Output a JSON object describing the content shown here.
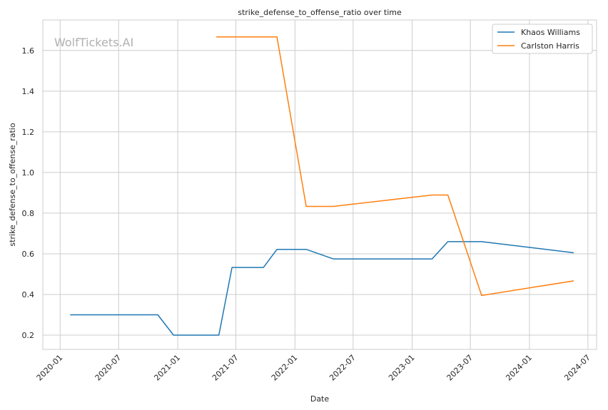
{
  "chart_data": {
    "type": "line",
    "title": "strike_defense_to_offense_ratio over time",
    "xlabel": "Date",
    "ylabel": "strike_defense_to_offense_ratio",
    "watermark": "WolfTickets.AI",
    "x_ticks": [
      "2020-01",
      "2020-07",
      "2021-01",
      "2021-07",
      "2022-01",
      "2022-07",
      "2023-01",
      "2023-07",
      "2024-01",
      "2024-07"
    ],
    "y_ticks": [
      "0.2",
      "0.4",
      "0.6",
      "0.8",
      "1.0",
      "1.2",
      "1.4",
      "1.6"
    ],
    "xlim": [
      "2019-11-08",
      "2024-07-28"
    ],
    "ylim": [
      0.13,
      1.75
    ],
    "grid": true,
    "legend_position": "top-right",
    "series": [
      {
        "name": "Khaos Williams",
        "color": "#1f77b4",
        "points": [
          [
            "2020-02-01",
            0.3
          ],
          [
            "2020-10-31",
            0.3
          ],
          [
            "2020-12-19",
            0.2
          ],
          [
            "2021-05-09",
            0.2
          ],
          [
            "2021-06-19",
            0.533
          ],
          [
            "2021-09-25",
            0.533
          ],
          [
            "2021-11-06",
            0.622
          ],
          [
            "2022-02-05",
            0.622
          ],
          [
            "2022-04-30",
            0.575
          ],
          [
            "2023-03-04",
            0.575
          ],
          [
            "2023-04-22",
            0.66
          ],
          [
            "2023-08-05",
            0.66
          ],
          [
            "2024-05-18",
            0.605
          ]
        ]
      },
      {
        "name": "Carlston Harris",
        "color": "#ff7f0e",
        "points": [
          [
            "2021-05-01",
            1.667
          ],
          [
            "2021-11-06",
            1.667
          ],
          [
            "2022-02-05",
            0.833
          ],
          [
            "2022-04-30",
            0.833
          ],
          [
            "2023-03-04",
            0.889
          ],
          [
            "2023-04-22",
            0.889
          ],
          [
            "2023-08-05",
            0.395
          ],
          [
            "2024-05-18",
            0.467
          ]
        ]
      }
    ]
  }
}
